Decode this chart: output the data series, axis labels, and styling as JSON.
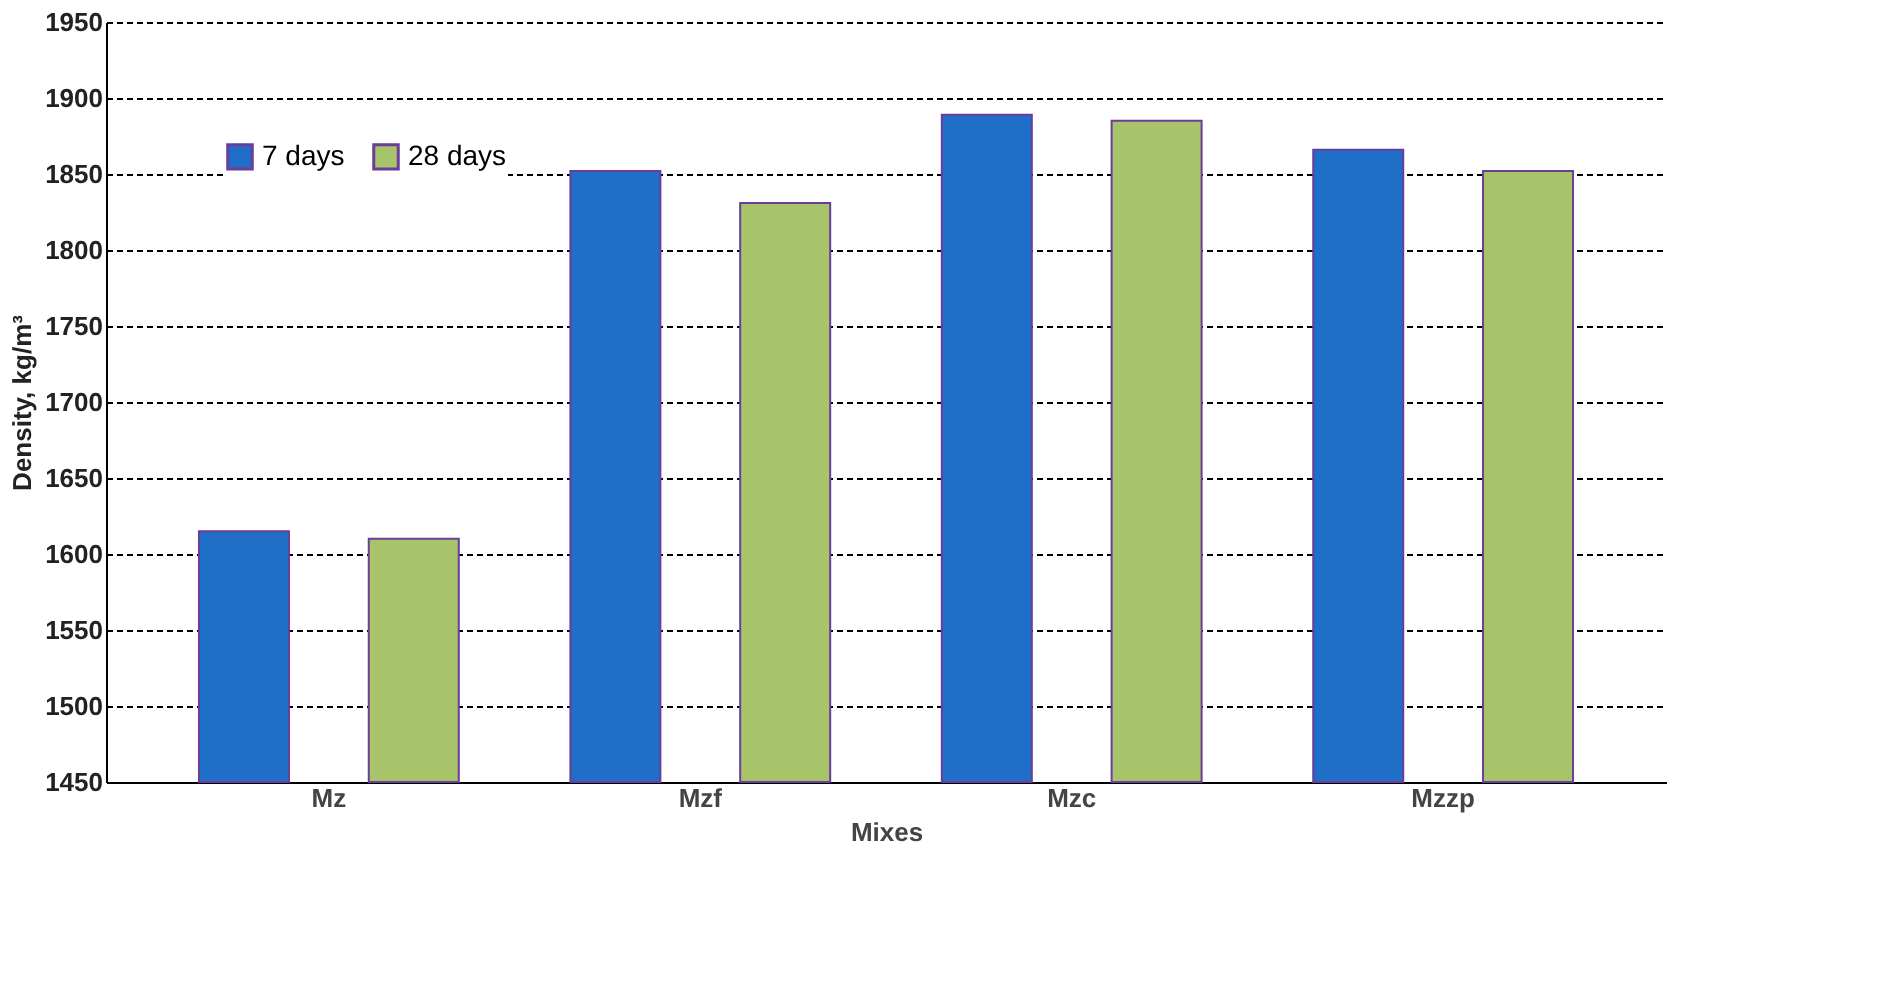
{
  "chart_data": {
    "type": "bar",
    "xlabel": "Mixes",
    "ylabel": "Density, kg/m³",
    "categories": [
      "Mz",
      "Mzf",
      "Mzc",
      "Mzzp"
    ],
    "series": [
      {
        "name": "7 days",
        "color": "#1f6fc8",
        "values": [
          1615,
          1852,
          1889,
          1866
        ]
      },
      {
        "name": "28 days",
        "color": "#a8c46a",
        "values": [
          1610,
          1831,
          1885,
          1852
        ]
      }
    ],
    "ylim": [
      1450,
      1950
    ],
    "yticks": [
      1450,
      1500,
      1550,
      1600,
      1650,
      1700,
      1750,
      1800,
      1850,
      1900,
      1950
    ],
    "grid": "y",
    "legend": "top left"
  }
}
